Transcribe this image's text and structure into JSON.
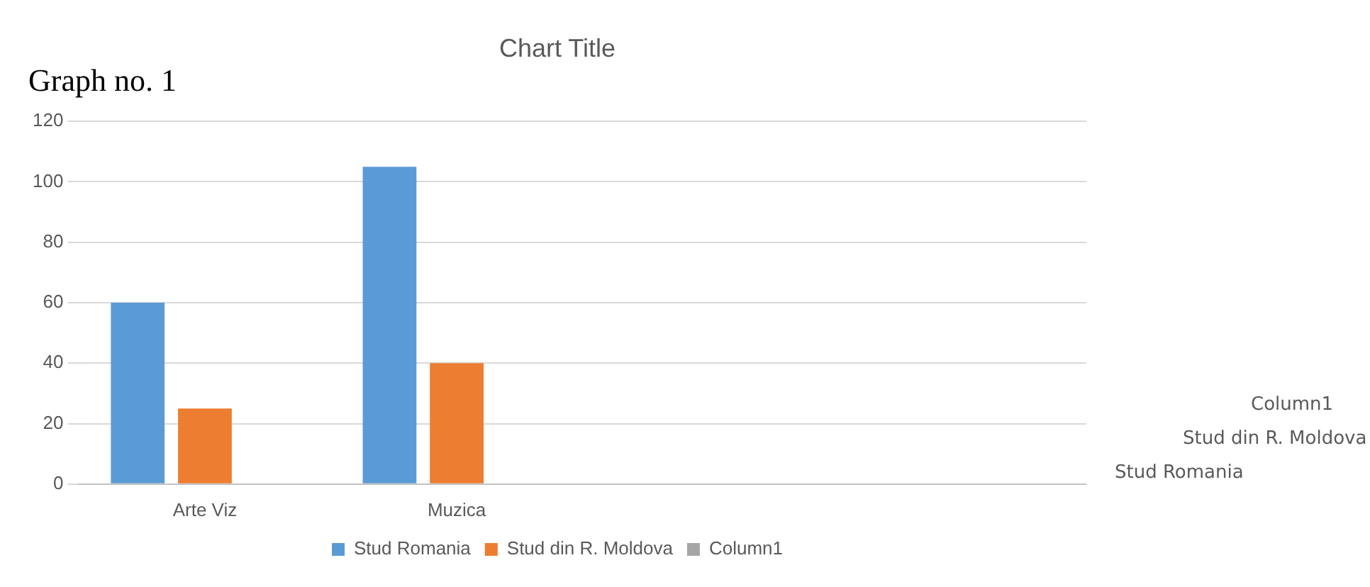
{
  "chart_data": {
    "type": "bar",
    "title": "Chart Title",
    "annotations": [
      "Graph no. 1"
    ],
    "categories": [
      "Arte Viz",
      "Muzica",
      null,
      null
    ],
    "series": [
      {
        "name": "Stud Romania",
        "color": "#5b9bd5",
        "values": [
          60,
          105,
          null,
          null
        ]
      },
      {
        "name": "Stud din R. Moldova",
        "color": "#ed7d31",
        "values": [
          25,
          40,
          null,
          null
        ]
      },
      {
        "name": "Column1",
        "color": "#a5a5a5",
        "values": [
          null,
          null,
          null,
          null
        ]
      }
    ],
    "ylim": [
      0,
      120
    ],
    "yticks": [
      0,
      20,
      40,
      60,
      80,
      100,
      120
    ],
    "grid": "y",
    "legend": "bottom"
  }
}
